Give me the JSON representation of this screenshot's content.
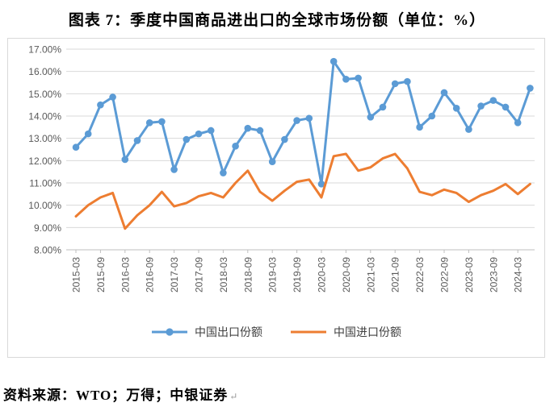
{
  "title": "图表 7：季度中国商品进出口的全球市场份额（单位：%）",
  "source_note": "资料来源：WTO；万得；中银证券",
  "return_mark": "↵",
  "colors": {
    "export_blue": "#5B9BD5",
    "import_orange": "#ED7D31",
    "gridline": "#D9D9D9",
    "axis_line": "#BFBFBF",
    "tick_label": "#595959",
    "card_border": "#D9D9D9"
  },
  "chart_data": {
    "type": "line",
    "title": "图表 7：季度中国商品进出口的全球市场份额（单位：%）",
    "grid": true,
    "legend_position": "bottom",
    "ylim": [
      8,
      17
    ],
    "y_tick_step": 1,
    "y_tick_labels": [
      "17.00%",
      "16.00%",
      "15.00%",
      "14.00%",
      "13.00%",
      "12.00%",
      "11.00%",
      "10.00%",
      "9.00%",
      "8.00%"
    ],
    "x_tick_labels": [
      "2015-03",
      "2015-09",
      "2016-03",
      "2016-09",
      "2017-03",
      "2017-09",
      "2018-03",
      "2018-09",
      "2019-03",
      "2019-09",
      "2020-03",
      "2020-09",
      "2021-03",
      "2021-09",
      "2022-03",
      "2022-09",
      "2023-03",
      "2023-09",
      "2024-03"
    ],
    "categories": [
      "2015-03",
      "2015-06",
      "2015-09",
      "2015-12",
      "2016-03",
      "2016-06",
      "2016-09",
      "2016-12",
      "2017-03",
      "2017-06",
      "2017-09",
      "2017-12",
      "2018-03",
      "2018-06",
      "2018-09",
      "2018-12",
      "2019-03",
      "2019-06",
      "2019-09",
      "2019-12",
      "2020-03",
      "2020-06",
      "2020-09",
      "2020-12",
      "2021-03",
      "2021-06",
      "2021-09",
      "2021-12",
      "2022-03",
      "2022-06",
      "2022-09",
      "2022-12",
      "2023-03",
      "2023-06",
      "2023-09",
      "2023-12",
      "2024-03",
      "2024-06"
    ],
    "series": [
      {
        "name": "中国出口份额",
        "color": "#5B9BD5",
        "marker": "circle",
        "values": [
          12.6,
          13.2,
          14.5,
          14.85,
          12.05,
          12.9,
          13.7,
          13.75,
          11.6,
          12.95,
          13.2,
          13.35,
          11.45,
          12.65,
          13.45,
          13.35,
          11.95,
          12.95,
          13.8,
          13.9,
          10.95,
          16.45,
          15.65,
          15.7,
          13.95,
          14.4,
          15.45,
          15.55,
          13.5,
          14.0,
          15.05,
          14.35,
          13.4,
          14.45,
          14.7,
          14.4,
          13.7,
          15.25
        ]
      },
      {
        "name": "中国进口份额",
        "color": "#ED7D31",
        "marker": "none",
        "values": [
          9.5,
          10.0,
          10.35,
          10.55,
          8.95,
          9.55,
          10.0,
          10.6,
          9.95,
          10.1,
          10.4,
          10.55,
          10.35,
          11.0,
          11.55,
          10.6,
          10.2,
          10.65,
          11.05,
          11.15,
          10.35,
          12.2,
          12.3,
          11.55,
          11.7,
          12.1,
          12.3,
          11.65,
          10.6,
          10.45,
          10.7,
          10.55,
          10.15,
          10.45,
          10.65,
          10.95,
          10.5,
          10.95
        ]
      }
    ]
  }
}
